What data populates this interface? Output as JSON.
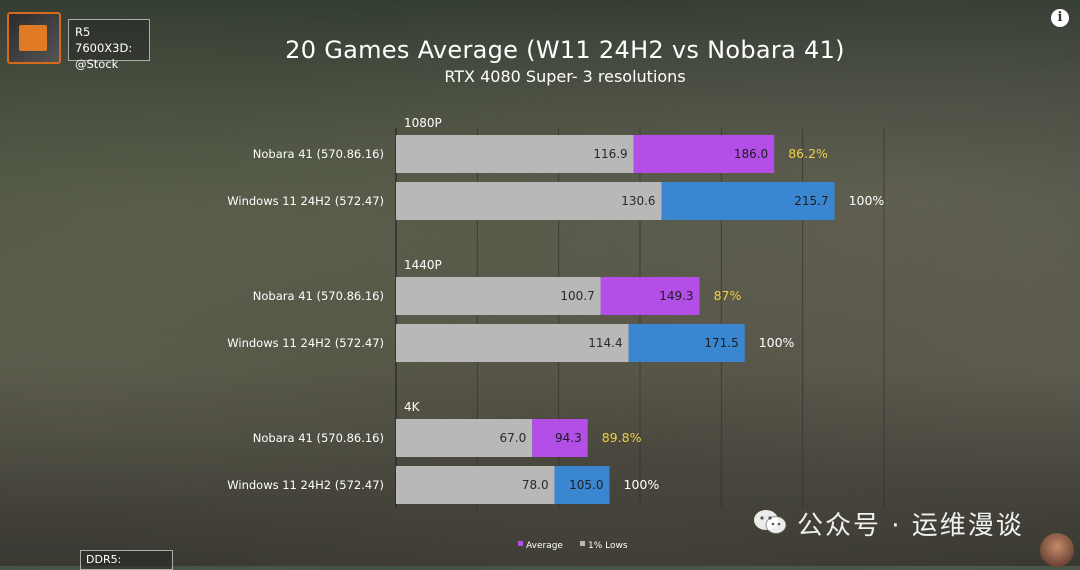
{
  "badge": {
    "cpu_line1": "R5 7600X3D:",
    "cpu_line2": "@Stock",
    "ddr": "DDR5:"
  },
  "watermark": "公众号 · 运维漫谈",
  "colors": {
    "average_nobara": "#b34fe6",
    "average_windows": "#3a86d1",
    "lows": "#b8b8b8",
    "pct_nobara": "#f0d040",
    "pct_windows": "#ffffff"
  },
  "chart_data": {
    "type": "bar",
    "orientation": "horizontal",
    "title": "20 Games Average (W11 24H2 vs Nobara 41)",
    "subtitle": "RTX 4080 Super- 3 resolutions",
    "xlim": [
      0,
      240
    ],
    "grid": true,
    "legend_position": "bottom",
    "legend": [
      "Average",
      "1% Lows"
    ],
    "groups": [
      {
        "name": "1080P",
        "rows": [
          {
            "label": "Nobara 41 (570.86.16)",
            "lows": 116.9,
            "average": 186.0,
            "percent": "86.2%",
            "os": "nobara"
          },
          {
            "label": "Windows 11 24H2 (572.47)",
            "lows": 130.6,
            "average": 215.7,
            "percent": "100%",
            "os": "windows"
          }
        ]
      },
      {
        "name": "1440P",
        "rows": [
          {
            "label": "Nobara 41 (570.86.16)",
            "lows": 100.7,
            "average": 149.3,
            "percent": "87%",
            "os": "nobara"
          },
          {
            "label": "Windows 11 24H2 (572.47)",
            "lows": 114.4,
            "average": 171.5,
            "percent": "100%",
            "os": "windows"
          }
        ]
      },
      {
        "name": "4K",
        "rows": [
          {
            "label": "Nobara 41 (570.86.16)",
            "lows": 67.0,
            "average": 94.3,
            "percent": "89.8%",
            "os": "nobara"
          },
          {
            "label": "Windows 11 24H2 (572.47)",
            "lows": 78.0,
            "average": 105.0,
            "percent": "100%",
            "os": "windows"
          }
        ]
      }
    ]
  }
}
